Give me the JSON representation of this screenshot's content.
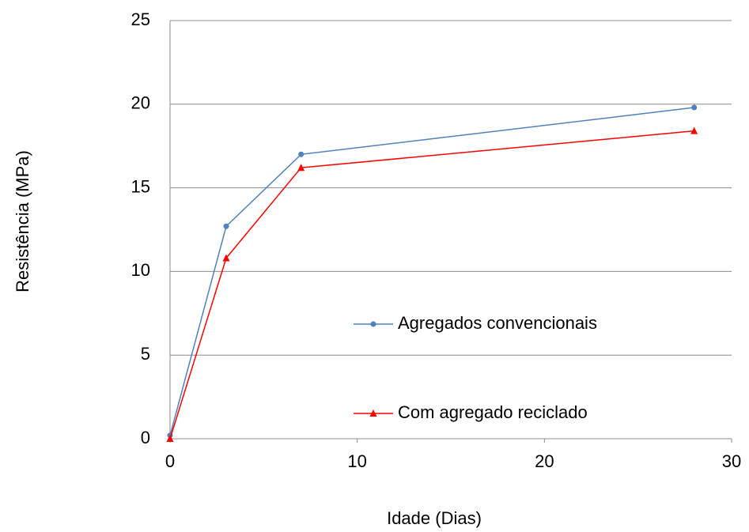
{
  "chart_data": {
    "type": "line",
    "x_label": "Idade (Dias)",
    "y_label": "Resistência (MPa)",
    "x": [
      0,
      3,
      7,
      28
    ],
    "series": [
      {
        "name": "Agregados convencionais",
        "color": "#4f81bd",
        "marker": "circle",
        "values": [
          0.2,
          12.7,
          17.0,
          19.8
        ]
      },
      {
        "name": "Com agregado reciclado",
        "color": "#ff0000",
        "marker": "triangle",
        "values": [
          0,
          10.8,
          16.2,
          18.4
        ]
      }
    ],
    "xlim": [
      0,
      30
    ],
    "xticks": [
      0,
      10,
      20,
      30
    ],
    "ylim": [
      0,
      25
    ],
    "yticks": [
      0,
      5,
      10,
      15,
      20,
      25
    ],
    "grid": true
  }
}
